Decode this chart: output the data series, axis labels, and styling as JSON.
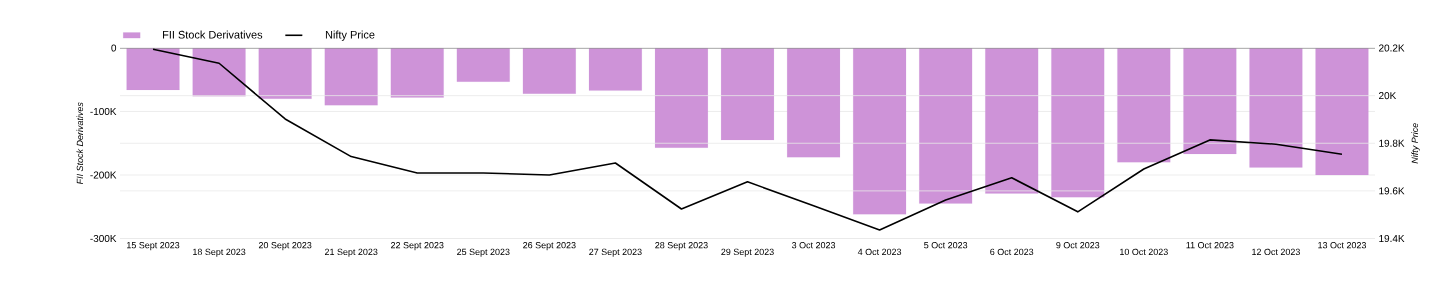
{
  "chart_data": {
    "type": "bar",
    "categories": [
      "15 Sept 2023",
      "18 Sept 2023",
      "20 Sept 2023",
      "21 Sept 2023",
      "22 Sept 2023",
      "25 Sept 2023",
      "26 Sept 2023",
      "27 Sept 2023",
      "28 Sept 2023",
      "29 Sept 2023",
      "3 Oct 2023",
      "4 Oct 2023",
      "5 Oct 2023",
      "6 Oct 2023",
      "9 Oct 2023",
      "10 Oct 2023",
      "11 Oct 2023",
      "12 Oct 2023",
      "13 Oct 2023"
    ],
    "series": [
      {
        "name": "FII Stock Derivatives",
        "color": "#ce93d8",
        "values": [
          -66000,
          -76000,
          -80000,
          -90000,
          -78000,
          -53000,
          -72000,
          -67000,
          -157000,
          -145000,
          -172000,
          -262000,
          -245000,
          -229000,
          -235000,
          -180000,
          -167000,
          -188000,
          -200000
        ]
      },
      {
        "name": "Nifty Price",
        "type": "line",
        "axis": "y2",
        "color": "#000000",
        "values": [
          20195,
          20136,
          19902,
          19744,
          19675,
          19675,
          19667,
          19717,
          19524,
          19638,
          19538,
          19436,
          19562,
          19655,
          19512,
          19692,
          19814,
          19796,
          19754
        ]
      }
    ],
    "ylabel": "FII Stock Derivatives",
    "y2label": "Nifty Price",
    "ylim": [
      -300000,
      0
    ],
    "yticks": [
      0,
      {
        "value": -100000,
        "label": "-100K"
      },
      {
        "value": -200000,
        "label": "-200K"
      },
      {
        "value": -300000,
        "label": "-300K"
      }
    ],
    "y2lim": [
      19400,
      20200
    ],
    "y2ticks": [
      {
        "value": 19400,
        "label": "19.4K"
      },
      {
        "value": 19600,
        "label": "19.6K"
      },
      {
        "value": 19800,
        "label": "19.8K"
      },
      {
        "value": 20000,
        "label": "20K"
      },
      {
        "value": 20200,
        "label": "20.2K"
      }
    ],
    "grid": true,
    "legend": "top left",
    "marker": "none",
    "line_style": "solid"
  }
}
